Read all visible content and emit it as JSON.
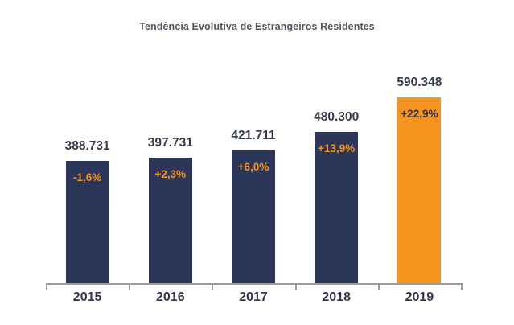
{
  "chart_data": {
    "type": "bar",
    "title": "Tendência Evolutiva de Estrangeiros Residentes",
    "categories": [
      "2015",
      "2016",
      "2017",
      "2018",
      "2019"
    ],
    "values": [
      388731,
      397731,
      421711,
      480300,
      590348
    ],
    "value_labels": [
      "388.731",
      "397.731",
      "421.711",
      "480.300",
      "590.348"
    ],
    "pct_change_labels": [
      "-1,6%",
      "+2,3%",
      "+6,0%",
      "+13,9%",
      "+22,9%"
    ],
    "bar_colors": [
      "#2C3659",
      "#2C3659",
      "#2C3659",
      "#2C3659",
      "#F6921E"
    ],
    "pct_label_colors": [
      "#F6921E",
      "#F6921E",
      "#F6921E",
      "#F6921E",
      "#2C3659"
    ],
    "highlight_index": 4,
    "xlabel": "",
    "ylabel": "",
    "ylim": [
      0,
      590348
    ],
    "y_axis_visible": false,
    "x_axis_visible": true,
    "gridlines": false,
    "legend": "none",
    "colors": {
      "bar_default": "#2C3659",
      "bar_highlight": "#F6921E",
      "title": "#515661",
      "value_label": "#363B4B",
      "category_label": "#2F3850",
      "axis": "#9B9B9B",
      "background": "#FFFFFF"
    }
  }
}
